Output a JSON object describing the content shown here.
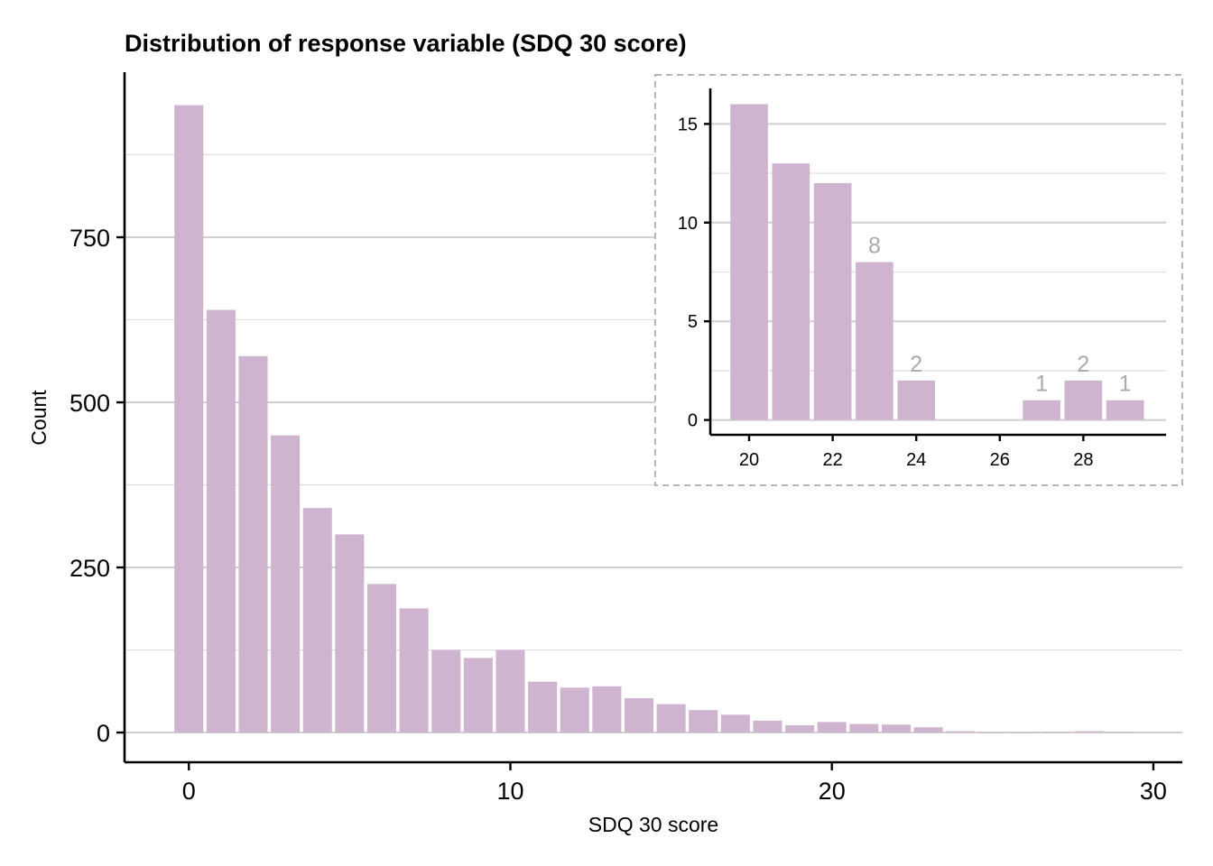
{
  "chart_data": {
    "type": "bar",
    "title": "Distribution of response variable (SDQ 30 score)",
    "xlabel": "SDQ 30 score",
    "ylabel": "Count",
    "x": [
      0,
      1,
      2,
      3,
      4,
      5,
      6,
      7,
      8,
      9,
      10,
      11,
      12,
      13,
      14,
      15,
      16,
      17,
      18,
      19,
      20,
      21,
      22,
      23,
      24,
      25,
      26,
      27,
      28,
      29
    ],
    "values": [
      950,
      640,
      570,
      450,
      340,
      300,
      225,
      188,
      125,
      113,
      125,
      77,
      68,
      70,
      52,
      43,
      34,
      27,
      18,
      11,
      16,
      13,
      12,
      8,
      2,
      0,
      0,
      1,
      2,
      1
    ],
    "xlim": [
      -2,
      30.9
    ],
    "ylim": [
      -45,
      1000
    ],
    "x_ticks": [
      0,
      10,
      20,
      30
    ],
    "y_ticks": [
      0,
      250,
      500,
      750
    ],
    "bar_color": "#cfb4d0",
    "grid": "horizontal",
    "inset": {
      "type": "bar",
      "x": [
        20,
        21,
        22,
        23,
        24,
        25,
        26,
        27,
        28,
        29
      ],
      "values": [
        16,
        13,
        12,
        8,
        2,
        0,
        0,
        1,
        2,
        1
      ],
      "data_labels": [
        {
          "x": 23,
          "text": "8"
        },
        {
          "x": 24,
          "text": "2"
        },
        {
          "x": 27,
          "text": "1"
        },
        {
          "x": 28,
          "text": "2"
        },
        {
          "x": 29,
          "text": "1"
        }
      ],
      "xlim": [
        19.07,
        29.98
      ],
      "ylim": [
        -0.75,
        16.8
      ],
      "x_ticks": [
        20,
        22,
        24,
        26,
        28
      ],
      "y_ticks": [
        0,
        5,
        10,
        15
      ],
      "border": "dashed",
      "label_color": "#aaaaaa"
    }
  }
}
